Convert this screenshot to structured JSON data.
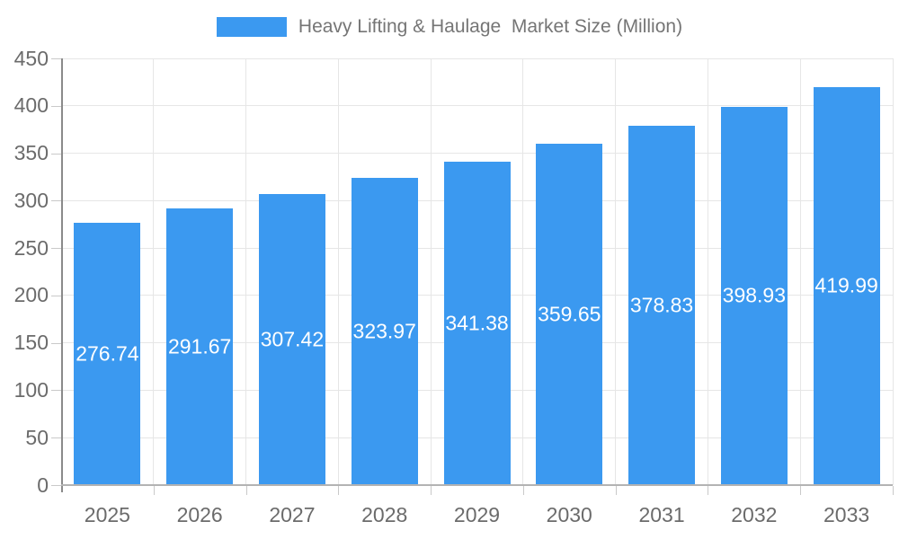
{
  "legend": {
    "label": "Heavy Lifting & Haulage  Market Size (Million)"
  },
  "chart_data": {
    "type": "bar",
    "title": "Heavy Lifting & Haulage  Market Size (Million)",
    "categories": [
      "2025",
      "2026",
      "2027",
      "2028",
      "2029",
      "2030",
      "2031",
      "2032",
      "2033"
    ],
    "values": [
      276.74,
      291.67,
      307.42,
      323.97,
      341.38,
      359.65,
      378.83,
      398.93,
      419.99
    ],
    "value_labels": [
      "276.74",
      "291.67",
      "307.42",
      "323.97",
      "341.38",
      "359.65",
      "378.83",
      "398.93",
      "419.99"
    ],
    "xlabel": "",
    "ylabel": "",
    "ylim": [
      0,
      450
    ],
    "ytick_step": 50,
    "ytick_labels": [
      "0",
      "50",
      "100",
      "150",
      "200",
      "250",
      "300",
      "350",
      "400",
      "450"
    ],
    "grid": true,
    "legend_position": "top",
    "colors": {
      "bar": "#3B99F0",
      "bar_value_text": "#ffffff",
      "axis_text": "#6b6b6b",
      "legend_text": "#757575",
      "gridline": "#e6e6e6",
      "axis_line_x": "#b3b3b3",
      "axis_line_y": "#8a8a8a"
    }
  }
}
